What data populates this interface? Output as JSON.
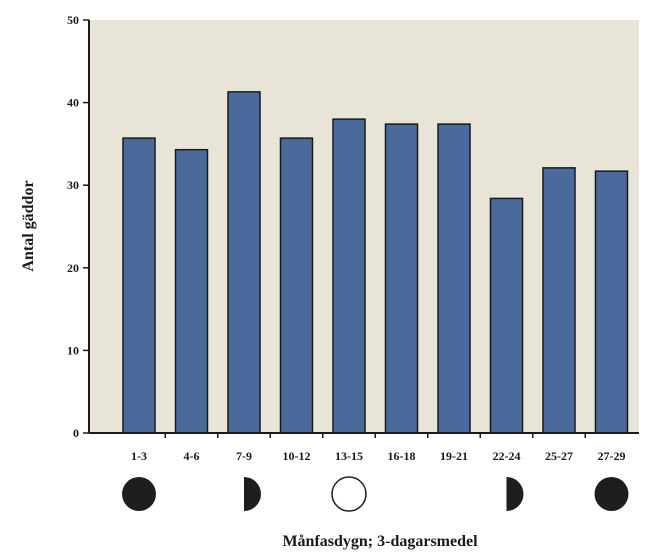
{
  "chart_data": {
    "type": "bar",
    "title": "",
    "xlabel": "Månfasdygn; 3-dagarsmedel",
    "ylabel": "Antal gäddor",
    "categories": [
      "1-3",
      "4-6",
      "7-9",
      "10-12",
      "13-15",
      "16-18",
      "19-21",
      "22-24",
      "25-27",
      "27-29"
    ],
    "values": [
      35.7,
      34.3,
      41.3,
      35.7,
      38.0,
      37.4,
      37.4,
      28.4,
      32.1,
      31.7
    ],
    "ylim": [
      0,
      50
    ],
    "yticks": [
      "0",
      "10",
      "20",
      "30",
      "40",
      "50"
    ],
    "grid": false,
    "legend": "none",
    "colors": {
      "plot_background": "#e9e4d8",
      "bar_fill": "#4a6a9c",
      "bar_stroke": "#1a1a1a",
      "axis": "#1a1a1a"
    },
    "moon_phase_icons": [
      {
        "category": "1-3",
        "icon": "new-moon-icon"
      },
      {
        "category": "7-9",
        "icon": "first-quarter-moon-icon"
      },
      {
        "category": "13-15",
        "icon": "full-moon-icon"
      },
      {
        "category": "22-24",
        "icon": "last-quarter-moon-icon"
      },
      {
        "category": "27-29",
        "icon": "new-moon-icon"
      }
    ]
  }
}
